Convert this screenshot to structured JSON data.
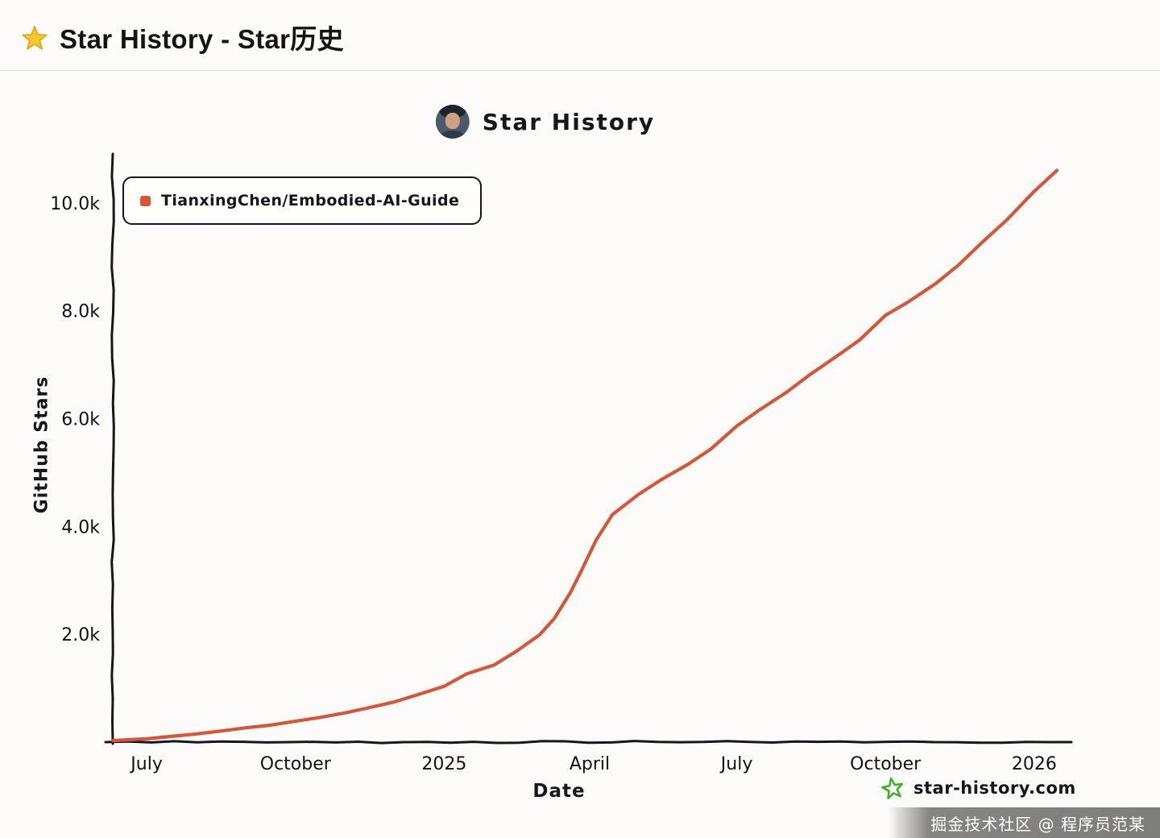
{
  "page": {
    "title": "Star History - Star历史"
  },
  "chart": {
    "title": "Star History",
    "ylabel": "GitHub Stars",
    "xlabel": "Date",
    "legend": [
      {
        "label": "TianxingChen/Embodied-AI-Guide",
        "color": "#d4573b"
      }
    ],
    "footer": {
      "site_label": "star-history.com",
      "star_color": "#3bb32a"
    }
  },
  "colors": {
    "accent": "#d4573b",
    "header_star": "#f6c62d",
    "axis": "#17171b"
  },
  "chart_data": {
    "type": "line",
    "title": "Star History",
    "xlabel": "Date",
    "ylabel": "GitHub Stars",
    "legend_position": "top-left",
    "grid": false,
    "x_ticks": [
      "July",
      "October",
      "2025",
      "April",
      "July",
      "October",
      "2026"
    ],
    "x_tick_dates": [
      "2024-07-01",
      "2024-10-01",
      "2025-01-01",
      "2025-04-01",
      "2025-07-01",
      "2025-10-01",
      "2026-01-01"
    ],
    "y_ticks": [
      "2.0k",
      "4.0k",
      "6.0k",
      "8.0k",
      "10.0k"
    ],
    "y_tick_values": [
      2000,
      4000,
      6000,
      8000,
      10000
    ],
    "x_domain": [
      "2024-06-10",
      "2026-01-20"
    ],
    "y_domain": [
      0,
      10700
    ],
    "series": [
      {
        "name": "TianxingChen/Embodied-AI-Guide",
        "color": "#d4573b",
        "points": [
          [
            "2024-06-10",
            10
          ],
          [
            "2024-07-01",
            60
          ],
          [
            "2024-07-15",
            100
          ],
          [
            "2024-08-01",
            150
          ],
          [
            "2024-08-15",
            200
          ],
          [
            "2024-09-01",
            260
          ],
          [
            "2024-09-15",
            320
          ],
          [
            "2024-10-01",
            390
          ],
          [
            "2024-10-15",
            450
          ],
          [
            "2024-11-01",
            530
          ],
          [
            "2024-11-15",
            620
          ],
          [
            "2024-12-01",
            730
          ],
          [
            "2024-12-15",
            860
          ],
          [
            "2025-01-01",
            1050
          ],
          [
            "2025-01-15",
            1250
          ],
          [
            "2025-02-01",
            1450
          ],
          [
            "2025-02-15",
            1700
          ],
          [
            "2025-03-01",
            2000
          ],
          [
            "2025-03-10",
            2300
          ],
          [
            "2025-03-20",
            2750
          ],
          [
            "2025-03-27",
            3200
          ],
          [
            "2025-04-05",
            3750
          ],
          [
            "2025-04-15",
            4200
          ],
          [
            "2025-05-01",
            4600
          ],
          [
            "2025-05-15",
            4850
          ],
          [
            "2025-06-01",
            5150
          ],
          [
            "2025-06-15",
            5450
          ],
          [
            "2025-07-01",
            5850
          ],
          [
            "2025-07-15",
            6150
          ],
          [
            "2025-08-01",
            6500
          ],
          [
            "2025-08-15",
            6800
          ],
          [
            "2025-09-01",
            7150
          ],
          [
            "2025-09-15",
            7450
          ],
          [
            "2025-10-01",
            7900
          ],
          [
            "2025-10-15",
            8150
          ],
          [
            "2025-11-01",
            8500
          ],
          [
            "2025-11-15",
            8850
          ],
          [
            "2025-12-01",
            9300
          ],
          [
            "2025-12-15",
            9700
          ],
          [
            "2026-01-01",
            10200
          ],
          [
            "2026-01-15",
            10600
          ]
        ]
      }
    ]
  },
  "watermark": {
    "text": "掘金技术社区 @ 程序员范某"
  }
}
